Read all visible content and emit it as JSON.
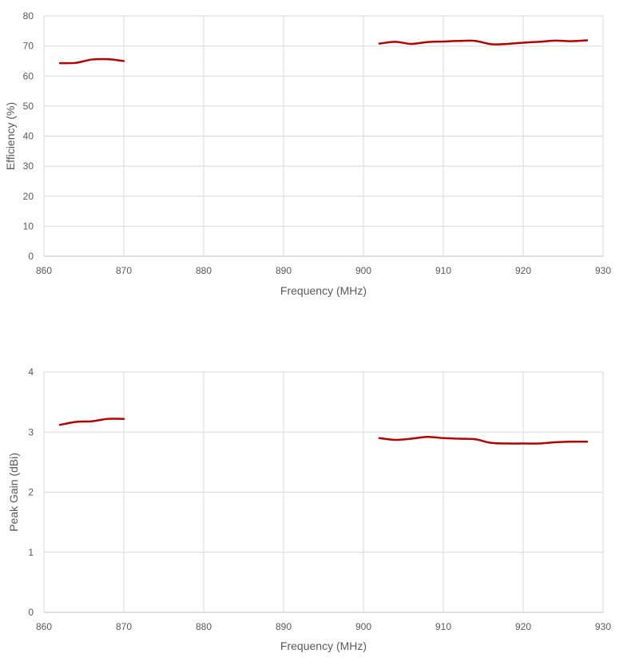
{
  "series_color": "#b00000",
  "chart_data": [
    {
      "type": "line",
      "title": "",
      "xlabel": "Frequency (MHz)",
      "ylabel": "Efficiency (%)",
      "xlim": [
        860,
        930
      ],
      "ylim": [
        0,
        80
      ],
      "x_ticks": [
        860,
        870,
        880,
        890,
        900,
        910,
        920,
        930
      ],
      "y_ticks": [
        0,
        10,
        20,
        30,
        40,
        50,
        60,
        70,
        80
      ],
      "grid": true,
      "legend": "none",
      "series": [
        {
          "segments": [
            [
              [
                862,
                64.3
              ],
              [
                864,
                64.4
              ],
              [
                866,
                65.5
              ],
              [
                868,
                65.6
              ],
              [
                870,
                65.0
              ]
            ],
            [
              [
                902,
                70.8
              ],
              [
                904,
                71.4
              ],
              [
                906,
                70.7
              ],
              [
                908,
                71.3
              ],
              [
                910,
                71.5
              ],
              [
                912,
                71.7
              ],
              [
                914,
                71.7
              ],
              [
                916,
                70.6
              ],
              [
                918,
                70.7
              ],
              [
                920,
                71.1
              ],
              [
                922,
                71.4
              ],
              [
                924,
                71.8
              ],
              [
                926,
                71.6
              ],
              [
                928,
                71.9
              ]
            ]
          ]
        }
      ]
    },
    {
      "type": "line",
      "title": "",
      "xlabel": "Frequency (MHz)",
      "ylabel": "Peak Gain (dBi)",
      "xlim": [
        860,
        930
      ],
      "ylim": [
        0,
        4
      ],
      "x_ticks": [
        860,
        870,
        880,
        890,
        900,
        910,
        920,
        930
      ],
      "y_ticks": [
        0,
        1,
        2,
        3,
        4
      ],
      "grid": true,
      "legend": "none",
      "series": [
        {
          "segments": [
            [
              [
                862,
                3.12
              ],
              [
                864,
                3.17
              ],
              [
                866,
                3.18
              ],
              [
                868,
                3.22
              ],
              [
                870,
                3.22
              ]
            ],
            [
              [
                902,
                2.9
              ],
              [
                904,
                2.87
              ],
              [
                906,
                2.89
              ],
              [
                908,
                2.92
              ],
              [
                910,
                2.9
              ],
              [
                912,
                2.89
              ],
              [
                914,
                2.88
              ],
              [
                916,
                2.82
              ],
              [
                918,
                2.81
              ],
              [
                920,
                2.81
              ],
              [
                922,
                2.81
              ],
              [
                924,
                2.83
              ],
              [
                926,
                2.84
              ],
              [
                928,
                2.84
              ]
            ]
          ]
        }
      ]
    }
  ]
}
